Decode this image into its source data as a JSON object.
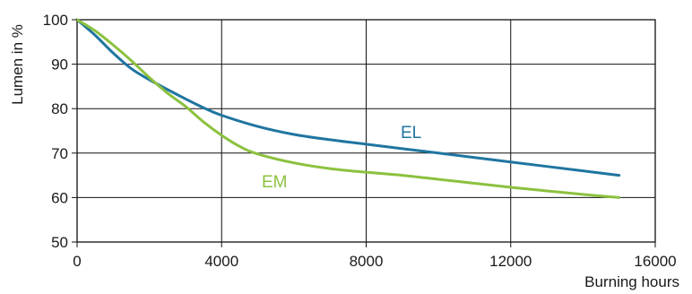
{
  "chart_data": {
    "type": "line",
    "title": "",
    "xlabel": "Burning hours",
    "ylabel": "Lumen in %",
    "xlim": [
      0,
      16000
    ],
    "ylim": [
      50,
      100
    ],
    "xticks": [
      0,
      4000,
      8000,
      12000,
      16000
    ],
    "yticks": [
      50,
      60,
      70,
      80,
      90,
      100
    ],
    "grid": true,
    "series": [
      {
        "name": "EL",
        "color": "#1f75a0",
        "x": [
          0,
          500,
          1000,
          1500,
          2000,
          2500,
          3000,
          3500,
          4000,
          5000,
          6000,
          7000,
          8000,
          9000,
          10000,
          11000,
          12000,
          13000,
          14000,
          15000
        ],
        "y": [
          100,
          96.5,
          92.5,
          89,
          86.5,
          84.3,
          82.2,
          80.2,
          78.5,
          76,
          74.2,
          73,
          72,
          71,
          70,
          69,
          68,
          67,
          66,
          65
        ]
      },
      {
        "name": "EM",
        "color": "#8cc13f",
        "x": [
          0,
          500,
          1000,
          1500,
          2000,
          2500,
          3000,
          3500,
          4000,
          4500,
          5000,
          6000,
          7000,
          8000,
          9000,
          10000,
          11000,
          12000,
          13000,
          14000,
          15000
        ],
        "y": [
          100,
          97.5,
          94.3,
          90.8,
          87,
          83.5,
          80.5,
          77,
          74,
          71.5,
          69.8,
          67.8,
          66.5,
          65.7,
          65,
          64.1,
          63.2,
          62.3,
          61.5,
          60.7,
          60
        ]
      }
    ]
  }
}
